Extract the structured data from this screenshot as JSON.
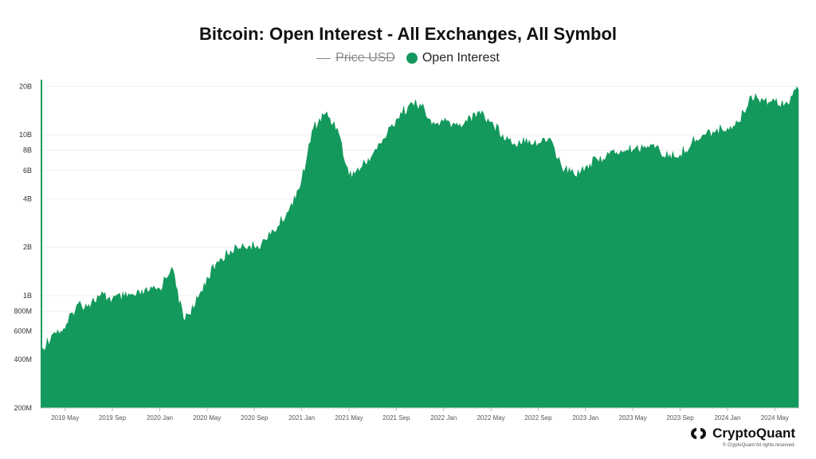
{
  "chart_data": {
    "type": "area",
    "title": "Bitcoin: Open Interest - All Exchanges, All Symbol",
    "yscale": "log",
    "ylim": [
      200000000,
      22000000000
    ],
    "yticks": [
      {
        "label": "20B",
        "value": 20000000000
      },
      {
        "label": "10B",
        "value": 10000000000
      },
      {
        "label": "8B",
        "value": 8000000000
      },
      {
        "label": "6B",
        "value": 6000000000
      },
      {
        "label": "4B",
        "value": 4000000000
      },
      {
        "label": "2B",
        "value": 2000000000
      },
      {
        "label": "1B",
        "value": 1000000000
      },
      {
        "label": "800M",
        "value": 800000000
      },
      {
        "label": "600M",
        "value": 600000000
      },
      {
        "label": "400M",
        "value": 400000000
      },
      {
        "label": "200M",
        "value": 200000000
      }
    ],
    "xlim": [
      "2019-03",
      "2024-07"
    ],
    "xticks": [
      "2019 May",
      "2019 Sep",
      "2020 Jan",
      "2020 May",
      "2020 Sep",
      "2021 Jan",
      "2021 May",
      "2021 Sep",
      "2022 Jan",
      "2022 May",
      "2022 Sep",
      "2023 Jan",
      "2023 May",
      "2023 Sep",
      "2024 Jan",
      "2024 May"
    ],
    "legend": {
      "position": "top-center"
    },
    "series": [
      {
        "name": "Price USD",
        "color": "#888888",
        "visible": false,
        "values": []
      },
      {
        "name": "Open Interest",
        "color": "#14995c",
        "unit": "USD",
        "x": [
          "2019-03",
          "2019-04",
          "2019-05",
          "2019-06",
          "2019-07",
          "2019-08",
          "2019-09",
          "2019-10",
          "2019-11",
          "2019-12",
          "2020-01",
          "2020-02",
          "2020-03",
          "2020-04",
          "2020-05",
          "2020-06",
          "2020-07",
          "2020-08",
          "2020-09",
          "2020-10",
          "2020-11",
          "2020-12",
          "2021-01",
          "2021-02",
          "2021-03",
          "2021-04",
          "2021-05",
          "2021-06",
          "2021-07",
          "2021-08",
          "2021-09",
          "2021-10",
          "2021-11",
          "2021-12",
          "2022-01",
          "2022-02",
          "2022-03",
          "2022-04",
          "2022-05",
          "2022-06",
          "2022-07",
          "2022-08",
          "2022-09",
          "2022-10",
          "2022-11",
          "2022-12",
          "2023-01",
          "2023-02",
          "2023-03",
          "2023-04",
          "2023-05",
          "2023-06",
          "2023-07",
          "2023-08",
          "2023-09",
          "2023-10",
          "2023-11",
          "2023-12",
          "2024-01",
          "2024-02",
          "2024-03",
          "2024-04",
          "2024-05",
          "2024-06",
          "2024-07"
        ],
        "values": [
          460000000,
          580000000,
          620000000,
          880000000,
          880000000,
          1000000000,
          950000000,
          980000000,
          1000000000,
          1050000000,
          1100000000,
          1500000000,
          720000000,
          870000000,
          1300000000,
          1600000000,
          1900000000,
          2100000000,
          2000000000,
          2200000000,
          2700000000,
          3500000000,
          5200000000,
          11000000000,
          13500000000,
          11000000000,
          5500000000,
          6200000000,
          7500000000,
          9500000000,
          12500000000,
          15000000000,
          15500000000,
          11500000000,
          12000000000,
          11500000000,
          12000000000,
          14000000000,
          12000000000,
          10000000000,
          8800000000,
          9500000000,
          8800000000,
          9500000000,
          6200000000,
          5700000000,
          6300000000,
          7000000000,
          7500000000,
          8000000000,
          8000000000,
          8500000000,
          8500000000,
          7200000000,
          7500000000,
          9000000000,
          10000000000,
          10500000000,
          11000000000,
          12000000000,
          17500000000,
          16500000000,
          16000000000,
          16000000000,
          19000000000
        ]
      }
    ]
  },
  "legend_items": {
    "price": "Price USD",
    "open_interest": "Open Interest"
  },
  "brand": {
    "name": "CryptoQuant",
    "copyright": "© CryptoQuant All rights reserved."
  }
}
